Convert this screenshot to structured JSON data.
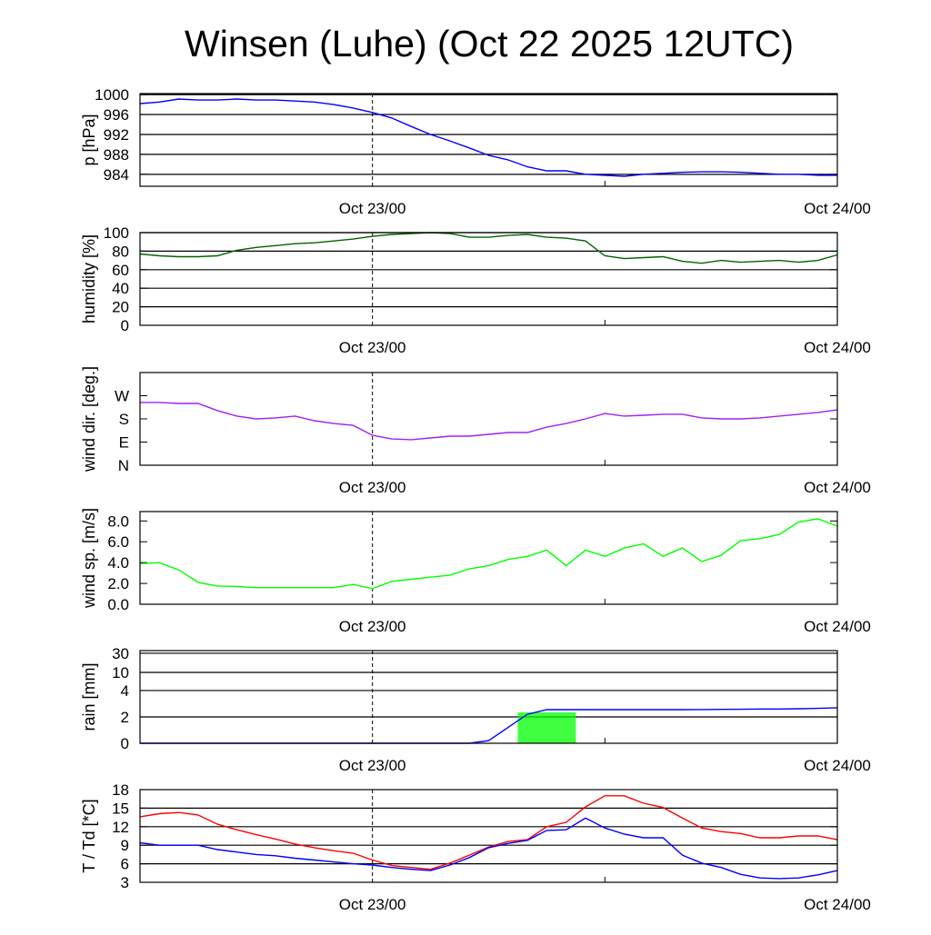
{
  "chart_data": [
    {
      "type": "line",
      "title": "Winsen (Luhe) (Oct 22 2025 12UTC)",
      "x_unit": "hours since Oct 22 12UTC",
      "xlim": [
        0,
        36
      ],
      "xticks": [
        {
          "x": 12,
          "label": "Oct 23/00",
          "dashed": true
        },
        {
          "x": 24,
          "label": "",
          "dashed": false
        },
        {
          "x": 36,
          "label": "Oct 24/00",
          "dashed": false
        }
      ],
      "x": [
        0,
        1,
        2,
        3,
        4,
        5,
        6,
        7,
        8,
        9,
        10,
        11,
        12,
        13,
        14,
        15,
        16,
        17,
        18,
        19,
        20,
        21,
        22,
        23,
        24,
        25,
        26,
        27,
        28,
        29,
        30,
        31,
        32,
        33,
        34,
        35,
        36
      ],
      "panels": [
        {
          "id": "pressure",
          "ylabel": "p [hPa]",
          "ylim": [
            981.6,
            1000.2
          ],
          "yticks": [
            1000,
            996,
            992,
            988,
            984
          ],
          "ytick_labels": [
            "1000",
            "996",
            "992",
            "988",
            "984"
          ],
          "grid": [
            1000,
            996,
            992,
            988,
            984
          ],
          "series": [
            {
              "name": "pressure",
              "color": "#0000ff",
              "values": [
                998.2,
                998.5,
                999.1,
                998.9,
                998.9,
                999.1,
                998.9,
                998.9,
                998.7,
                998.5,
                998.0,
                997.3,
                996.4,
                995.3,
                993.6,
                992.0,
                990.7,
                989.3,
                987.8,
                986.9,
                985.5,
                984.7,
                984.7,
                984.0,
                983.8,
                983.6,
                984.0,
                984.2,
                984.4,
                984.5,
                984.5,
                984.4,
                984.2,
                984.0,
                984.0,
                983.8,
                983.8
              ]
            }
          ]
        },
        {
          "id": "humidity",
          "ylabel": "humidity [%]",
          "ylim": [
            0,
            100
          ],
          "yticks": [
            0,
            20,
            40,
            60,
            80,
            100
          ],
          "ytick_labels": [
            "0",
            "20",
            "40",
            "60",
            "80",
            "100"
          ],
          "grid": [
            20,
            40,
            60,
            80,
            100
          ],
          "series": [
            {
              "name": "humidity",
              "color": "#006400",
              "values": [
                77,
                75,
                74,
                74,
                75,
                81,
                84,
                86,
                88,
                89,
                91,
                93,
                96,
                98,
                99,
                100,
                99,
                95,
                95,
                97,
                98,
                95,
                94,
                91,
                75,
                72,
                73,
                74,
                69,
                67,
                70,
                68,
                69,
                70,
                68,
                70,
                76
              ]
            }
          ]
        },
        {
          "id": "wind_direction",
          "ylabel": "wind dir. [deg.]",
          "ylim": [
            0,
            360
          ],
          "yticks": [
            0,
            90,
            180,
            270
          ],
          "ytick_labels": [
            "N",
            "E",
            "S",
            "W"
          ],
          "grid": [],
          "series": [
            {
              "name": "wind direction",
              "color": "#a020f0",
              "values": [
                244,
                244,
                240,
                240,
                212,
                191,
                180,
                184,
                191,
                173,
                162,
                155,
                116,
                102,
                99,
                106,
                113,
                113,
                120,
                127,
                127,
                148,
                162,
                180,
                201,
                191,
                194,
                198,
                198,
                184,
                180,
                180,
                184,
                191,
                198,
                205,
                215
              ]
            }
          ]
        },
        {
          "id": "wind_speed",
          "ylabel": "wind sp. [m/s]",
          "ylim": [
            0,
            8.9
          ],
          "yticks": [
            0,
            2,
            4,
            6,
            8
          ],
          "ytick_labels": [
            "0.0",
            "2.0",
            "4.0",
            "6.0",
            "8.0"
          ],
          "grid": [],
          "series": [
            {
              "name": "wind speed",
              "color": "#00ff00",
              "values": [
                3.9,
                4.0,
                3.3,
                2.1,
                1.75,
                1.7,
                1.6,
                1.6,
                1.6,
                1.6,
                1.6,
                1.9,
                1.5,
                2.2,
                2.4,
                2.6,
                2.8,
                3.4,
                3.7,
                4.3,
                4.6,
                5.2,
                3.7,
                5.2,
                4.6,
                5.4,
                5.8,
                4.6,
                5.4,
                4.1,
                4.7,
                6.1,
                6.3,
                6.7,
                7.9,
                8.2,
                7.5
              ]
            }
          ]
        },
        {
          "id": "rain",
          "ylabel": "rain [mm]",
          "ylim": [
            0,
            32
          ],
          "yticks": [
            0,
            2,
            4,
            10,
            30
          ],
          "ytick_labels": [
            "0",
            "2",
            "4",
            "10",
            "30"
          ],
          "grid": [
            2,
            4,
            10,
            30
          ],
          "bars": [
            {
              "name": "hourly rain",
              "color": "#00ff00",
              "x_start": 19.5,
              "x_end": 22.5,
              "value": 2.35
            }
          ],
          "series": [
            {
              "name": "accumulated rain",
              "color": "#0000ff",
              "values": [
                0,
                0,
                0,
                0,
                0,
                0,
                0,
                0,
                0,
                0,
                0,
                0,
                0,
                0,
                0,
                0,
                0,
                0,
                0.2,
                1.2,
                2.2,
                2.55,
                2.55,
                2.55,
                2.55,
                2.55,
                2.55,
                2.55,
                2.55,
                2.56,
                2.57,
                2.58,
                2.6,
                2.6,
                2.62,
                2.65,
                2.7
              ]
            }
          ]
        },
        {
          "id": "temperature",
          "ylabel": "T / Td [*C]",
          "ylim": [
            3,
            18
          ],
          "yticks": [
            3,
            6,
            9,
            12,
            15,
            18
          ],
          "ytick_labels": [
            "3",
            "6",
            "9",
            "12",
            "15",
            "18"
          ],
          "grid": [
            6,
            9,
            12,
            15
          ],
          "series": [
            {
              "name": "T",
              "color": "#ff0000",
              "values": [
                13.6,
                14.1,
                14.3,
                13.9,
                12.4,
                11.5,
                10.7,
                10.0,
                9.2,
                8.6,
                8.1,
                7.7,
                6.6,
                5.7,
                5.4,
                5.1,
                6.1,
                7.4,
                8.7,
                9.6,
                9.9,
                12.0,
                12.7,
                15.2,
                17.0,
                17.0,
                15.8,
                15.1,
                13.4,
                11.8,
                11.2,
                10.9,
                10.2,
                10.2,
                10.5,
                10.5,
                9.9
              ]
            },
            {
              "name": "Td",
              "color": "#0000ff",
              "values": [
                9.4,
                9.0,
                9.0,
                9.0,
                8.3,
                7.9,
                7.5,
                7.3,
                6.9,
                6.6,
                6.3,
                6.0,
                5.8,
                5.4,
                5.1,
                4.9,
                5.8,
                7.0,
                8.6,
                9.3,
                9.8,
                11.4,
                11.5,
                13.4,
                11.8,
                10.8,
                10.2,
                10.2,
                7.4,
                6.1,
                5.4,
                4.3,
                3.7,
                3.6,
                3.7,
                4.2,
                4.9
              ]
            }
          ]
        }
      ]
    }
  ]
}
